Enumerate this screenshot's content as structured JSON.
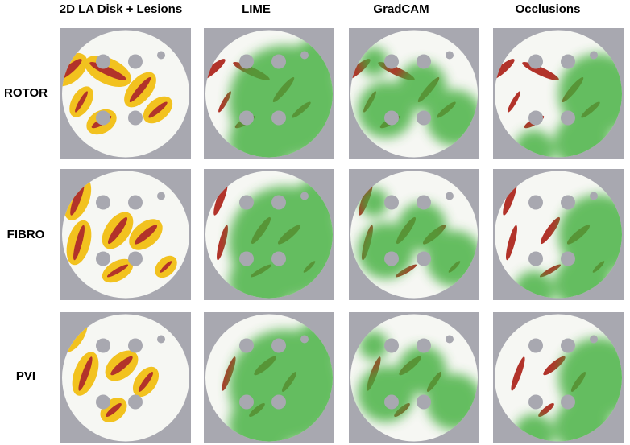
{
  "columns": [
    "2D LA Disk + Lesions",
    "LIME",
    "GradCAM",
    "Occlusions"
  ],
  "rows": [
    "ROTOR",
    "FIBRO",
    "PVI"
  ]
}
